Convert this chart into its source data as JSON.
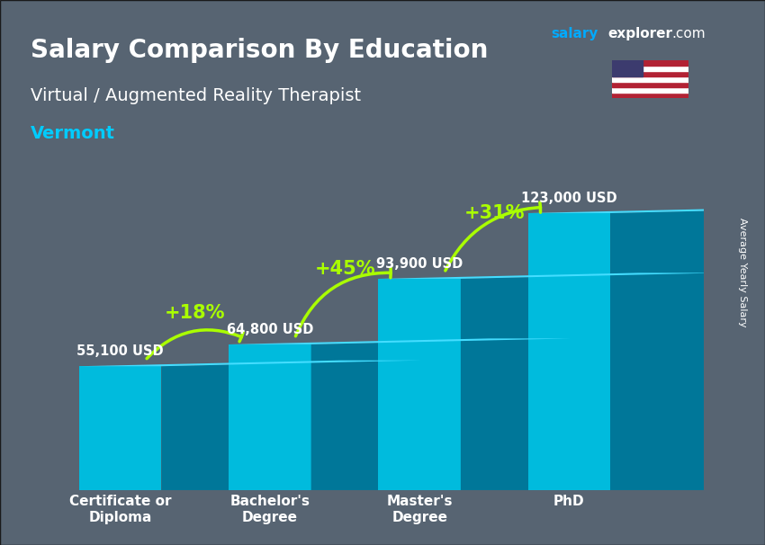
{
  "title_line1": "Salary Comparison By Education",
  "title_line2": "Virtual / Augmented Reality Therapist",
  "title_line3": "Vermont",
  "categories": [
    "Certificate or\nDiploma",
    "Bachelor's\nDegree",
    "Master's\nDegree",
    "PhD"
  ],
  "values": [
    55100,
    64800,
    93900,
    123000
  ],
  "value_labels": [
    "55,100 USD",
    "64,800 USD",
    "93,900 USD",
    "123,000 USD"
  ],
  "pct_labels": [
    "+18%",
    "+45%",
    "+31%"
  ],
  "bar_color_top": "#00d4ff",
  "bar_color_mid": "#00aadd",
  "bar_color_bottom": "#0088bb",
  "bar_color_side": "#006699",
  "bg_color": "#2a3a4a",
  "text_color_white": "#ffffff",
  "text_color_cyan": "#00ccff",
  "text_color_green": "#aaff00",
  "ylabel": "Average Yearly Salary",
  "site_name_salary": "salary",
  "site_name_explorer": "explorer",
  "site_tld": ".com",
  "bar_width": 0.55,
  "ylim_max": 145000,
  "arrow_color": "#aaff00"
}
